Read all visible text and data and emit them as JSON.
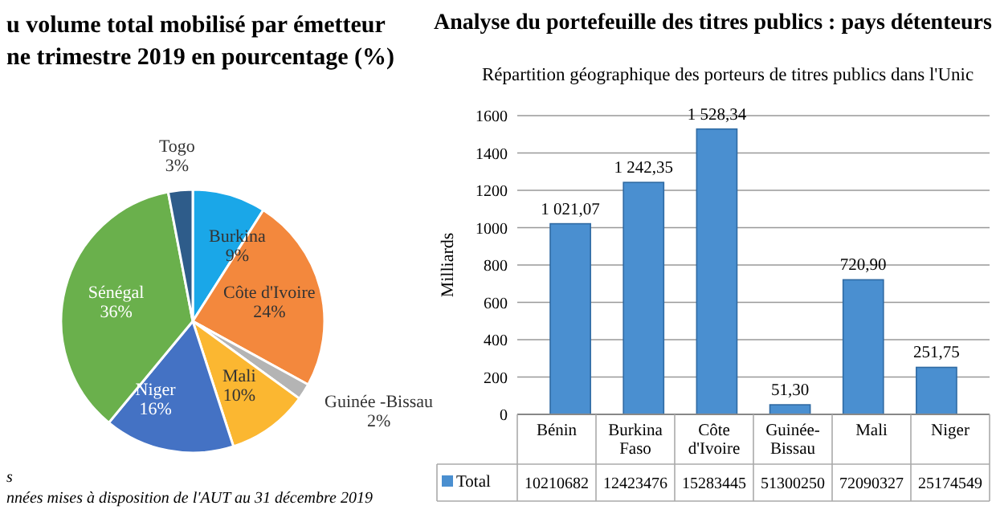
{
  "chart_data": [
    {
      "type": "pie",
      "title": "u volume total mobilisé par émetteur\nne trimestre 2019 en pourcentage (%)",
      "categories": [
        "Burkina",
        "Côte d'Ivoire",
        "Guinée -Bissau",
        "Mali",
        "Niger",
        "Sénégal",
        "Togo"
      ],
      "values": [
        9,
        24,
        2,
        10,
        16,
        36,
        3
      ],
      "value_labels": [
        "9%",
        "24%",
        "2%",
        "10%",
        "16%",
        "36%",
        "3%"
      ],
      "colors": [
        "#1aa7e8",
        "#f3883d",
        "#b4b4b4",
        "#fbb731",
        "#4472c4",
        "#6ab04c",
        "#2e5c8a"
      ],
      "annotations": [
        "s",
        "nnées mises à disposition de l'AUT au 31 décembre 2019"
      ]
    },
    {
      "type": "bar",
      "title": "Analyse du portefeuille des titres publics : pays détenteurs",
      "subtitle": "Répartition géographique des porteurs de titres publics dans l'Unic",
      "ylabel": "Milliards",
      "categories": [
        "Bénin",
        "Burkina Faso",
        "Côte d'Ivoire",
        "Guinée-Bissau",
        "Mali",
        "Niger"
      ],
      "series": [
        {
          "name": "Total",
          "color": "#4a8fd0",
          "values": [
            1021.07,
            1242.35,
            1528.34,
            51.3,
            720.9,
            251.75
          ],
          "value_labels": [
            "1 021,07",
            "1 242,35",
            "1 528,34",
            "51,30",
            "720,90",
            "251,75"
          ]
        }
      ],
      "ylim": [
        0,
        1600
      ],
      "yticks": [
        0,
        200,
        400,
        600,
        800,
        1000,
        1200,
        1400,
        1600
      ],
      "grid": "y",
      "legend": "bottom",
      "annotations": [
        "10210682",
        "12423476",
        "15283445",
        "51300250",
        "72090327",
        "25174549"
      ]
    }
  ]
}
